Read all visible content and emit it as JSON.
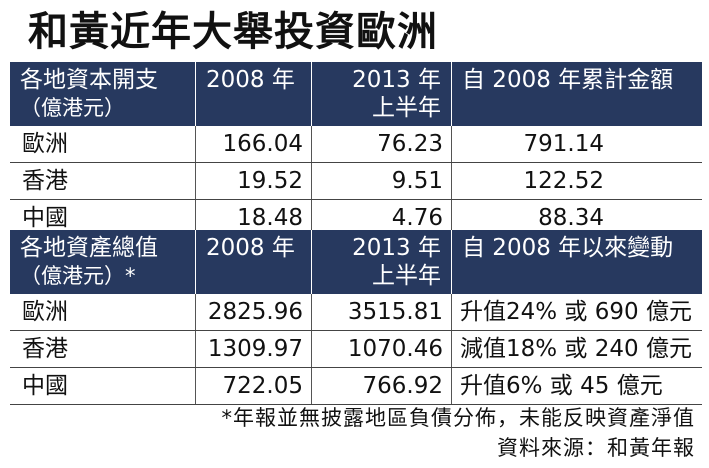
{
  "title": "和黃近年大舉投資歐洲",
  "table1": {
    "header": {
      "col0_line1": "各地資本開支",
      "col0_line2": "（億港元）",
      "col1": "2008 年",
      "col2_line1": "2013 年",
      "col2_line2": "上半年",
      "col3": "自 2008 年累計金額"
    },
    "rows": [
      {
        "region": "歐洲",
        "v2008": "166.04",
        "v2013": "76.23",
        "total": "791.14"
      },
      {
        "region": "香港",
        "v2008": "19.52",
        "v2013": "9.51",
        "total": "122.52"
      },
      {
        "region": "中國",
        "v2008": "18.48",
        "v2013": "4.76",
        "total": "88.34"
      }
    ]
  },
  "table2": {
    "header": {
      "col0_line1": "各地資產總值",
      "col0_line2": "（億港元）*",
      "col1": "2008 年",
      "col2_line1": "2013 年",
      "col2_line2": "上半年",
      "col3": "自 2008 年以來變動"
    },
    "rows": [
      {
        "region": "歐洲",
        "v2008": "2825.96",
        "v2013": "3515.81",
        "change": "升值24% 或 690 億元"
      },
      {
        "region": "香港",
        "v2008": "1309.97",
        "v2013": "1070.46",
        "change": "減值18% 或 240 億元"
      },
      {
        "region": "中國",
        "v2008": "722.05",
        "v2013": "766.92",
        "change": "升值6% 或 45 億元"
      }
    ]
  },
  "footnote": "*年報並無披露地區負債分佈，未能反映資產淨值",
  "source": "資料來源：和黃年報"
}
